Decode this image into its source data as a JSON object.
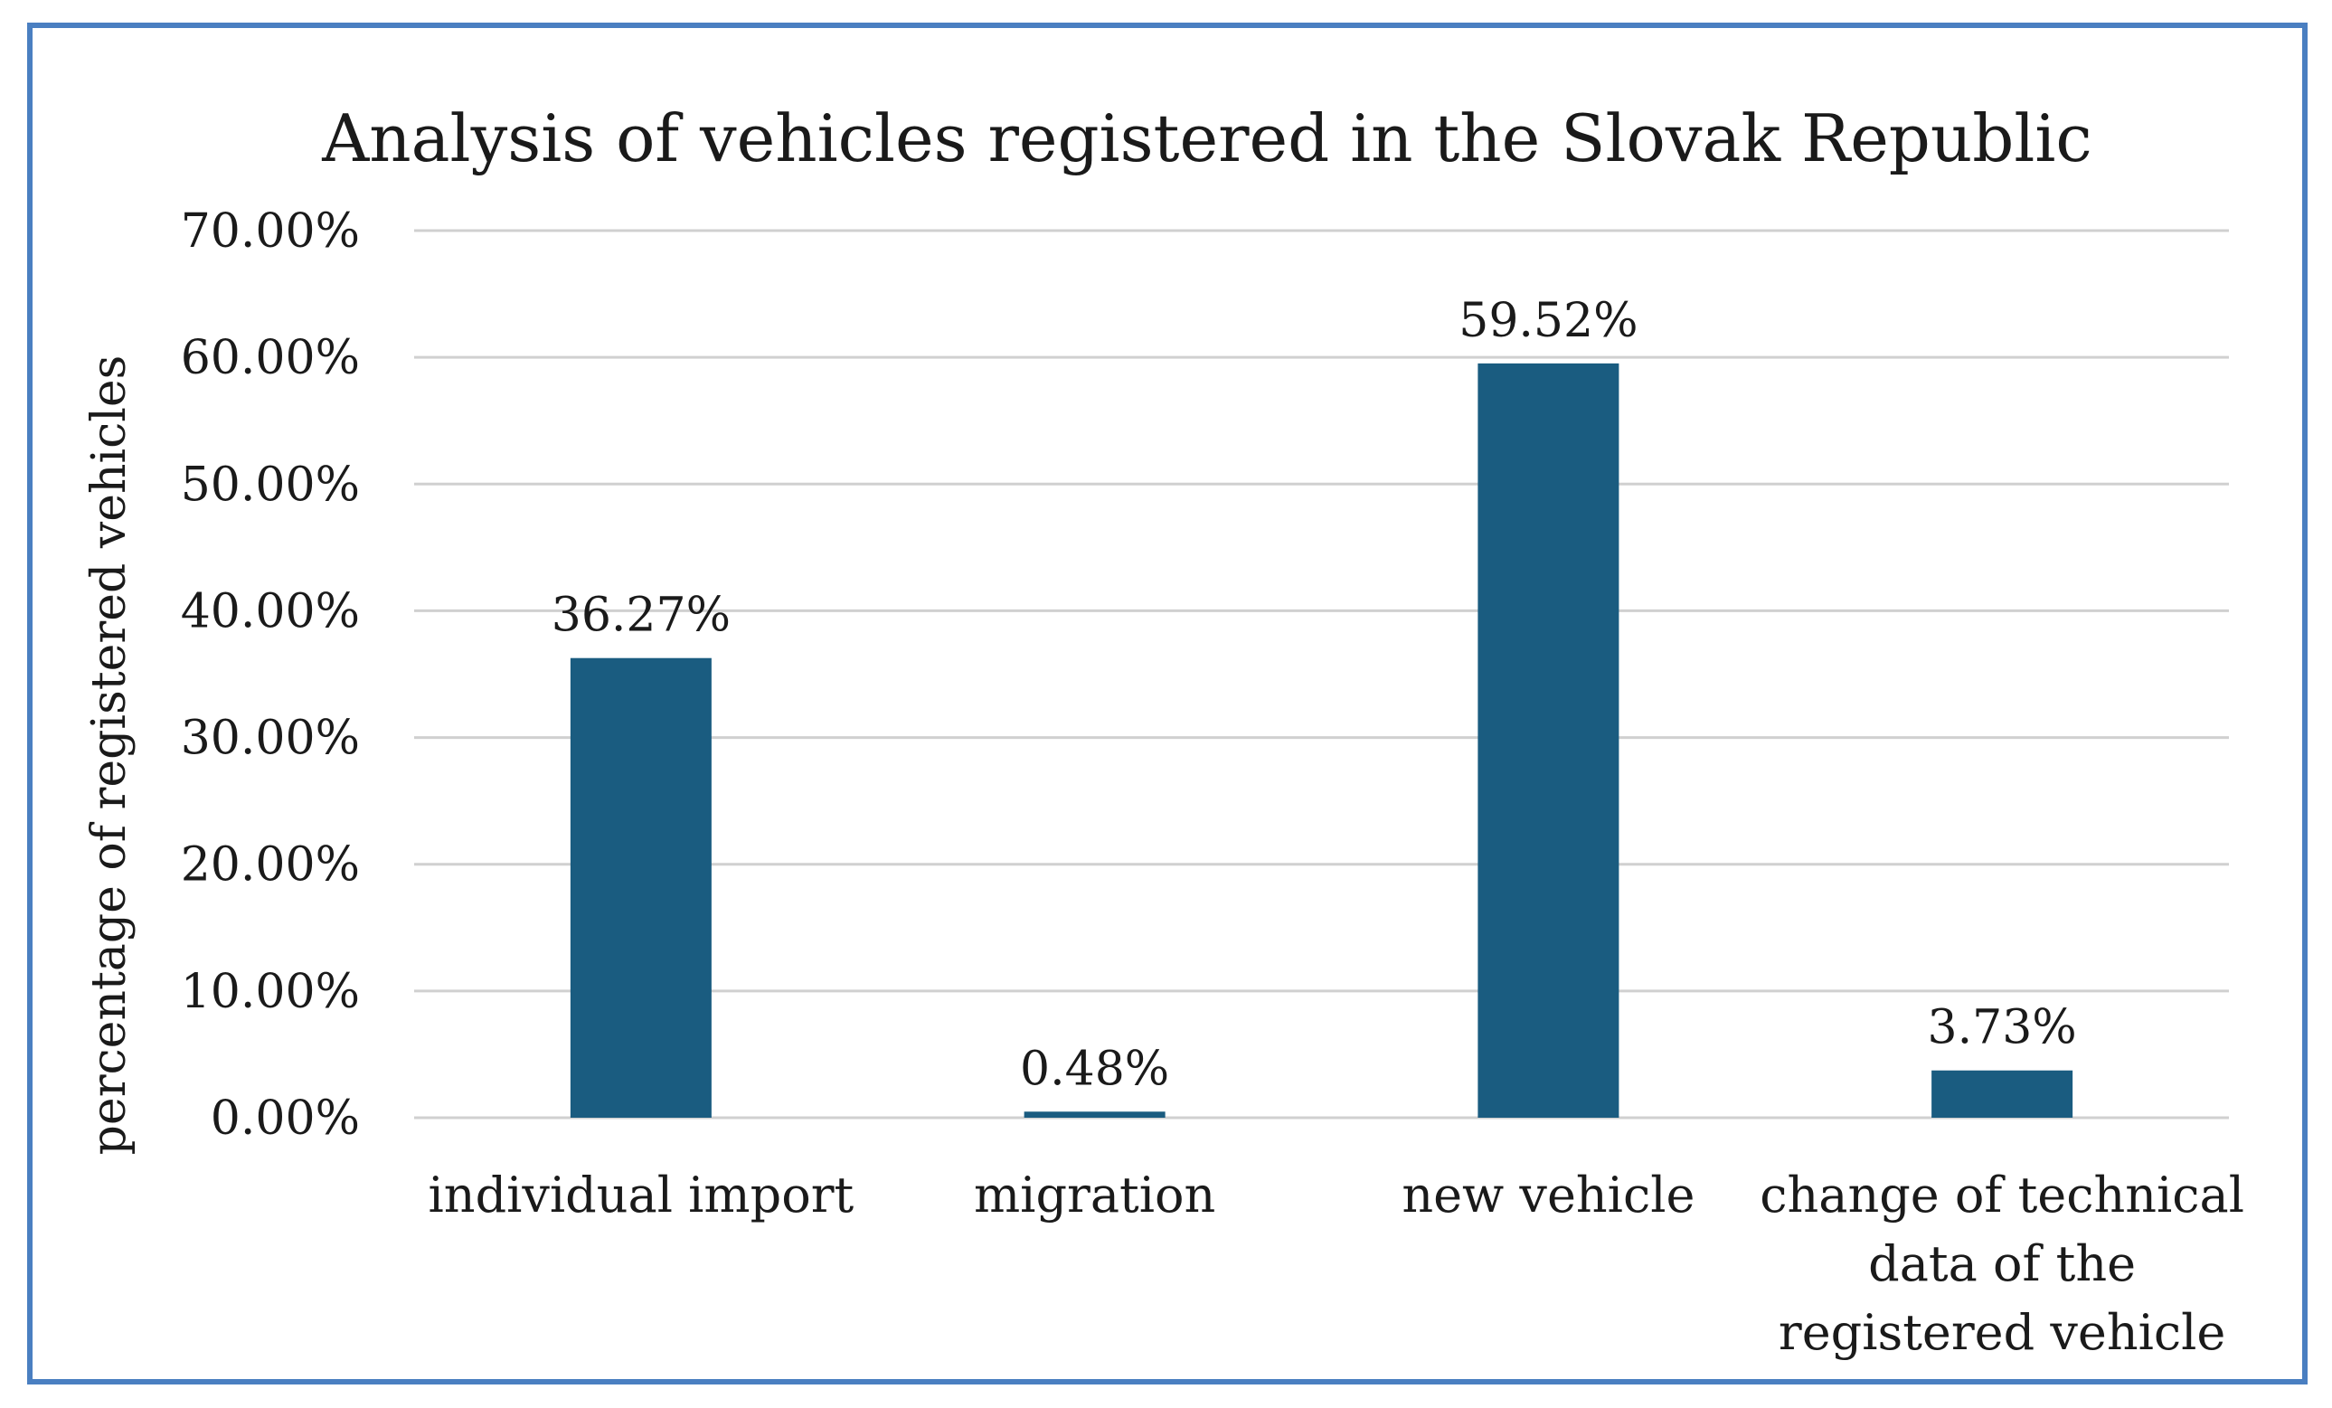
{
  "chart_data": {
    "type": "bar",
    "title": "Analysis of vehicles registered in the Slovak Republic",
    "xlabel": "",
    "ylabel": "percentage of registered vehicles",
    "categories": [
      [
        "individual import"
      ],
      [
        "migration"
      ],
      [
        "new vehicle"
      ],
      [
        "change of technical",
        "data of the",
        "registered vehicle"
      ]
    ],
    "values": [
      36.27,
      0.48,
      59.52,
      3.73
    ],
    "value_labels": [
      "36.27%",
      "0.48%",
      "59.52%",
      "3.73%"
    ],
    "y_ticks": [
      "0.00%",
      "10.00%",
      "20.00%",
      "30.00%",
      "40.00%",
      "50.00%",
      "60.00%",
      "70.00%"
    ],
    "y_tick_values": [
      0,
      10,
      20,
      30,
      40,
      50,
      60,
      70
    ],
    "ylim": [
      0,
      70
    ],
    "grid": true,
    "legend": "none"
  },
  "colors": {
    "bar": "#1a5c80",
    "border": "#4a7fc1",
    "grid": "#d0d0d0",
    "text": "#1a1a1a"
  }
}
